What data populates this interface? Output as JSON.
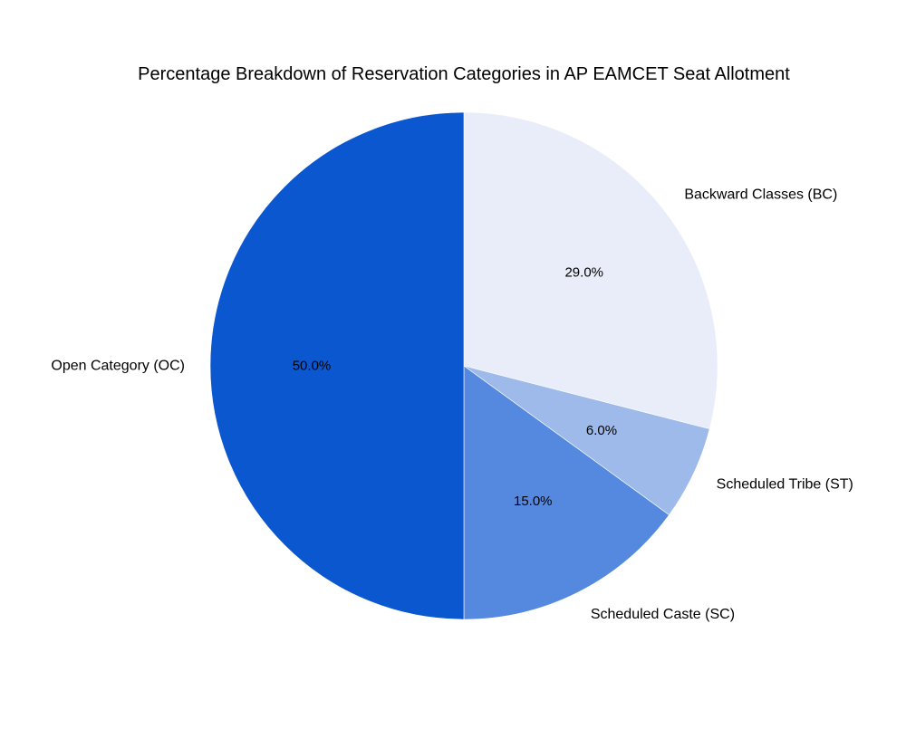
{
  "chart_data": {
    "type": "pie",
    "title": "Percentage Breakdown of Reservation Categories in AP EAMCET Seat Allotment",
    "categories": [
      "Backward Classes (BC)",
      "Scheduled Tribe (ST)",
      "Scheduled Caste (SC)",
      "Open Category (OC)"
    ],
    "values": [
      29.0,
      6.0,
      15.0,
      50.0
    ],
    "value_labels": [
      "29.0%",
      "6.0%",
      "15.0%",
      "50.0%"
    ],
    "colors": [
      "#e8edf9",
      "#9dbaeb",
      "#5589df",
      "#0b57d0"
    ],
    "start_angle_deg": 90,
    "direction": "clockwise",
    "legend": "none"
  }
}
